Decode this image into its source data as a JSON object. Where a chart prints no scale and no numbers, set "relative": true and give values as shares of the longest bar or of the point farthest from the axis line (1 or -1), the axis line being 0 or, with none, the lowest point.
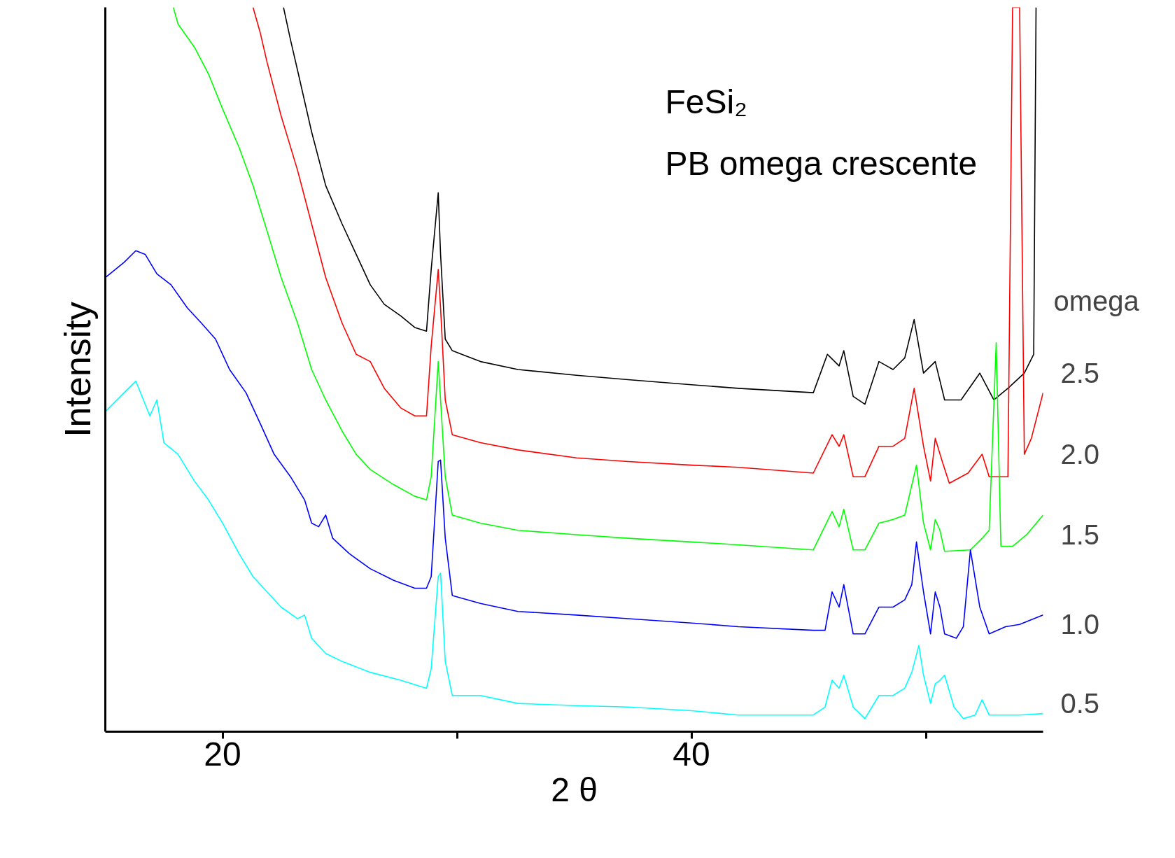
{
  "chart_data": {
    "type": "line",
    "relative": true,
    "xlabel": "2 θ",
    "ylabel": "Intensity",
    "legend_title": "omega",
    "annotations": [
      "FeSi₂",
      "PB omega crescente"
    ],
    "xlim": [
      15,
      55
    ],
    "xticks": [
      20,
      {
        "value": 30,
        "label": null
      },
      40,
      {
        "value": 50,
        "label": null
      }
    ],
    "grid": false,
    "marker": "none",
    "line_style": "solid",
    "series": [
      {
        "name": "2.5",
        "color": "#000000",
        "x": [
          22.6,
          22.9,
          23.2,
          23.8,
          24.4,
          25.1,
          25.7,
          26.3,
          26.9,
          27.6,
          28.2,
          28.7,
          28.9,
          29.2,
          29.3,
          29.5,
          29.8,
          31.0,
          32.6,
          35.1,
          37.3,
          40.0,
          42.0,
          45.2,
          45.8,
          46.3,
          46.5,
          46.9,
          47.4,
          48.0,
          48.6,
          49.1,
          49.5,
          49.9,
          50.4,
          50.8,
          51.5,
          52.3,
          52.9,
          53.5,
          54.2,
          54.6,
          54.7
        ],
        "values": [
          1.0,
          0.955,
          0.913,
          0.828,
          0.754,
          0.701,
          0.659,
          0.617,
          0.59,
          0.574,
          0.558,
          0.553,
          0.638,
          0.744,
          0.659,
          0.542,
          0.526,
          0.511,
          0.5,
          0.492,
          0.486,
          0.479,
          0.474,
          0.468,
          0.521,
          0.505,
          0.526,
          0.463,
          0.452,
          0.511,
          0.5,
          0.516,
          0.569,
          0.495,
          0.511,
          0.458,
          0.458,
          0.495,
          0.458,
          0.474,
          0.495,
          0.521,
          1.0
        ]
      },
      {
        "name": "2.0",
        "color": "#ff0000",
        "x": [
          21.3,
          21.6,
          21.9,
          22.5,
          23.2,
          23.8,
          24.4,
          25.1,
          25.7,
          26.3,
          26.9,
          27.6,
          28.2,
          28.7,
          28.9,
          29.2,
          29.3,
          29.5,
          29.8,
          31.0,
          32.6,
          35.1,
          37.3,
          40.0,
          42.0,
          45.2,
          46.0,
          46.3,
          46.5,
          46.9,
          47.4,
          48.0,
          48.6,
          49.1,
          49.5,
          49.9,
          50.2,
          50.4,
          50.7,
          51.0,
          51.8,
          52.4,
          52.7,
          53.5,
          53.7,
          54.0,
          54.2,
          54.5,
          55.0
        ],
        "values": [
          1.0,
          0.966,
          0.924,
          0.85,
          0.775,
          0.701,
          0.627,
          0.564,
          0.521,
          0.511,
          0.474,
          0.447,
          0.436,
          0.436,
          0.532,
          0.638,
          0.585,
          0.458,
          0.41,
          0.399,
          0.389,
          0.378,
          0.373,
          0.368,
          0.365,
          0.357,
          0.41,
          0.394,
          0.41,
          0.352,
          0.352,
          0.394,
          0.394,
          0.405,
          0.474,
          0.394,
          0.346,
          0.405,
          0.373,
          0.343,
          0.357,
          0.383,
          0.352,
          0.352,
          1.0,
          1.0,
          0.383,
          0.405,
          0.468
        ]
      },
      {
        "name": "1.5",
        "color": "#00ff00",
        "x": [
          17.9,
          18.1,
          18.8,
          19.4,
          20.0,
          20.7,
          21.3,
          21.9,
          22.5,
          23.2,
          23.8,
          24.4,
          25.1,
          25.7,
          26.3,
          27.3,
          28.2,
          28.7,
          28.9,
          29.2,
          29.3,
          29.5,
          29.8,
          31.0,
          32.6,
          35.1,
          37.3,
          40.0,
          42.0,
          45.2,
          46.0,
          46.3,
          46.5,
          46.9,
          47.4,
          48.0,
          48.6,
          49.1,
          49.6,
          49.9,
          50.2,
          50.4,
          50.6,
          50.8,
          51.9,
          52.4,
          52.7,
          53.0,
          53.2,
          53.7,
          54.3,
          55.0
        ],
        "values": [
          1.0,
          0.977,
          0.945,
          0.908,
          0.86,
          0.807,
          0.754,
          0.691,
          0.627,
          0.564,
          0.5,
          0.458,
          0.415,
          0.383,
          0.362,
          0.341,
          0.325,
          0.32,
          0.352,
          0.511,
          0.458,
          0.352,
          0.299,
          0.288,
          0.278,
          0.272,
          0.267,
          0.262,
          0.258,
          0.251,
          0.304,
          0.283,
          0.307,
          0.251,
          0.251,
          0.288,
          0.293,
          0.299,
          0.368,
          0.288,
          0.251,
          0.293,
          0.278,
          0.249,
          0.251,
          0.267,
          0.278,
          0.537,
          0.256,
          0.256,
          0.272,
          0.299
        ]
      },
      {
        "name": "1.0",
        "color": "#0000ff",
        "x": [
          15.0,
          15.8,
          16.3,
          16.7,
          17.2,
          17.8,
          18.5,
          19.1,
          19.7,
          20.3,
          21.0,
          21.6,
          22.2,
          22.9,
          23.5,
          23.8,
          24.1,
          24.4,
          24.7,
          25.4,
          26.3,
          27.3,
          28.2,
          28.7,
          28.9,
          29.2,
          29.3,
          29.5,
          29.8,
          31.0,
          32.6,
          35.1,
          37.3,
          40.0,
          42.0,
          45.2,
          45.7,
          46.0,
          46.3,
          46.5,
          46.9,
          47.4,
          48.0,
          48.6,
          49.1,
          49.4,
          49.6,
          49.9,
          50.2,
          50.4,
          50.6,
          50.8,
          51.3,
          51.6,
          51.9,
          52.3,
          52.7,
          53.4,
          54.0,
          55.0
        ],
        "values": [
          0.627,
          0.648,
          0.664,
          0.659,
          0.632,
          0.617,
          0.585,
          0.564,
          0.542,
          0.5,
          0.468,
          0.426,
          0.383,
          0.352,
          0.32,
          0.288,
          0.283,
          0.299,
          0.267,
          0.246,
          0.225,
          0.209,
          0.198,
          0.198,
          0.214,
          0.373,
          0.375,
          0.267,
          0.188,
          0.177,
          0.166,
          0.161,
          0.156,
          0.15,
          0.145,
          0.14,
          0.14,
          0.193,
          0.172,
          0.203,
          0.135,
          0.135,
          0.172,
          0.172,
          0.182,
          0.203,
          0.262,
          0.193,
          0.135,
          0.193,
          0.172,
          0.135,
          0.129,
          0.145,
          0.251,
          0.172,
          0.135,
          0.145,
          0.148,
          0.161
        ]
      },
      {
        "name": "0.5",
        "color": "#00ffff",
        "x": [
          15.0,
          15.8,
          16.3,
          16.9,
          17.2,
          17.5,
          18.1,
          18.8,
          19.4,
          20.0,
          20.7,
          21.3,
          21.9,
          22.5,
          23.2,
          23.5,
          23.8,
          24.4,
          25.1,
          26.3,
          27.6,
          28.7,
          28.9,
          29.2,
          29.3,
          29.5,
          29.8,
          31.0,
          32.6,
          35.1,
          37.3,
          40.0,
          42.0,
          45.2,
          45.7,
          46.0,
          46.3,
          46.5,
          46.9,
          47.4,
          48.0,
          48.6,
          49.1,
          49.4,
          49.7,
          49.9,
          50.2,
          50.4,
          50.6,
          50.8,
          51.2,
          51.6,
          52.1,
          52.4,
          52.7,
          54.0,
          55.0
        ],
        "values": [
          0.442,
          0.468,
          0.484,
          0.436,
          0.458,
          0.399,
          0.383,
          0.346,
          0.32,
          0.288,
          0.246,
          0.214,
          0.193,
          0.172,
          0.156,
          0.161,
          0.129,
          0.108,
          0.097,
          0.082,
          0.071,
          0.06,
          0.087,
          0.214,
          0.219,
          0.097,
          0.05,
          0.05,
          0.039,
          0.036,
          0.034,
          0.029,
          0.023,
          0.023,
          0.034,
          0.071,
          0.06,
          0.078,
          0.034,
          0.018,
          0.05,
          0.05,
          0.06,
          0.082,
          0.119,
          0.078,
          0.039,
          0.066,
          0.071,
          0.078,
          0.034,
          0.018,
          0.023,
          0.044,
          0.023,
          0.023,
          0.025
        ]
      }
    ]
  }
}
